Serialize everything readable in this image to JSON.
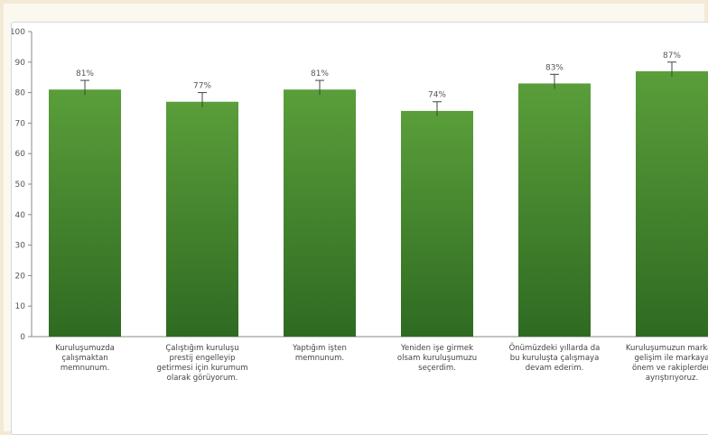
{
  "chart_data": {
    "type": "bar",
    "title": "",
    "xlabel": "",
    "ylabel": "",
    "ylim": [
      0,
      100
    ],
    "y_ticks": [
      0,
      10,
      20,
      30,
      40,
      50,
      60,
      70,
      80,
      90,
      100
    ],
    "grid": false,
    "error_bars": true,
    "error_value": 3,
    "bar_color_top": "#5a9e3a",
    "bar_color_bottom": "#2f6a22",
    "categories": [
      "Kuruluşumuzda çalışmaktan memnunum.",
      "Çalıştığım kuruluşu prestij engelleyip getirmesi için kurumum olarak görüyorum.",
      "Yaptığım işten memnunum.",
      "Yeniden işe girmek olsam kuruluşumuzu seçerdim.",
      "Önümüzdeki yıllarda da bu kuruluşta çalışmaya devam ederim.",
      "Kuruluşumuzun markası gelişim ile markaya önem ve rakiplerden ayrıştırıyoruz."
    ],
    "values": [
      81,
      77,
      81,
      74,
      83,
      87
    ],
    "value_labels": [
      "81%",
      "77%",
      "81%",
      "74%",
      "83%",
      "87%"
    ]
  }
}
